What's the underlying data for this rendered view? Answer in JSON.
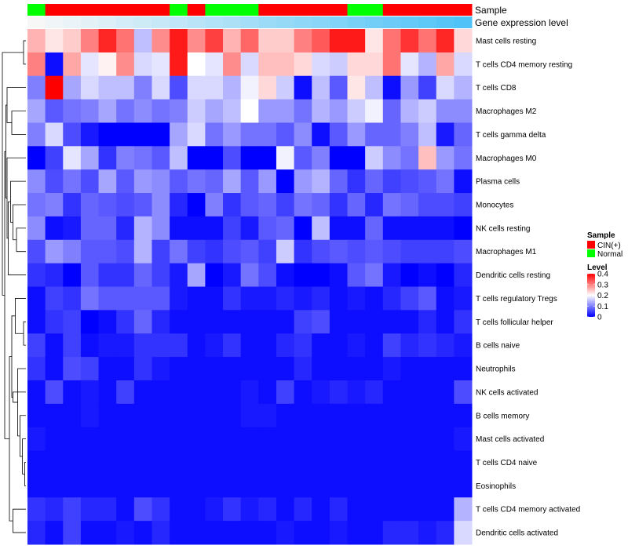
{
  "chart_data": {
    "type": "heatmap",
    "annotation_tracks": [
      {
        "name": "Sample",
        "values": [
          "Normal",
          "CIN(+)",
          "CIN(+)",
          "CIN(+)",
          "CIN(+)",
          "CIN(+)",
          "CIN(+)",
          "CIN(+)",
          "Normal",
          "CIN(+)",
          "Normal",
          "Normal",
          "Normal",
          "CIN(+)",
          "CIN(+)",
          "CIN(+)",
          "CIN(+)",
          "CIN(+)",
          "Normal",
          "Normal",
          "CIN(+)",
          "CIN(+)",
          "CIN(+)",
          "CIN(+)",
          "CIN(+)"
        ]
      },
      {
        "name": "Gene expression level",
        "values": [
          0.0,
          0.04,
          0.08,
          0.12,
          0.16,
          0.21,
          0.25,
          0.29,
          0.33,
          0.37,
          0.41,
          0.45,
          0.5,
          0.54,
          0.58,
          0.62,
          0.66,
          0.7,
          0.75,
          0.79,
          0.83,
          0.87,
          0.91,
          0.95,
          1.0
        ]
      }
    ],
    "annotation_colors": {
      "CIN(+)": "#ff0000",
      "Normal": "#00ff00",
      "expression_low": "#f7f7f7",
      "expression_high": "#4fc3f7"
    },
    "rows": [
      "Mast cells resting",
      "T cells CD4 memory resting",
      "T cells CD8",
      "Macrophages M2",
      "T cells gamma delta",
      "Macrophages M0",
      "Plasma cells",
      "Monocytes",
      "NK cells resting",
      "Macrophages M1",
      "Dendritic cells resting",
      "T cells regulatory  Tregs",
      "T cells follicular helper",
      "B cells naive",
      "Neutrophils",
      "NK cells activated",
      "B cells memory",
      "Mast cells activated",
      "T cells CD4 naive",
      "Eosinophils",
      "T cells CD4 memory activated",
      "Dendritic cells activated"
    ],
    "values": [
      [
        0.26,
        0.22,
        0.24,
        0.3,
        0.37,
        0.31,
        0.15,
        0.29,
        0.38,
        0.29,
        0.35,
        0.26,
        0.32,
        0.24,
        0.24,
        0.3,
        0.33,
        0.38,
        0.38,
        0.22,
        0.31,
        0.36,
        0.31,
        0.37,
        0.23
      ],
      [
        0.3,
        0.01,
        0.27,
        0.18,
        0.21,
        0.29,
        0.17,
        0.18,
        0.38,
        0.2,
        0.18,
        0.29,
        0.17,
        0.25,
        0.25,
        0.23,
        0.17,
        0.16,
        0.23,
        0.23,
        0.31,
        0.18,
        0.14,
        0.27,
        0.17
      ],
      [
        0.1,
        0.4,
        0.13,
        0.17,
        0.15,
        0.15,
        0.1,
        0.17,
        0.06,
        0.17,
        0.17,
        0.14,
        0.19,
        0.23,
        0.16,
        0.01,
        0.15,
        0.07,
        0.22,
        0.15,
        0.01,
        0.12,
        0.05,
        0.17,
        0.14
      ],
      [
        0.13,
        0.07,
        0.09,
        0.1,
        0.13,
        0.09,
        0.11,
        0.09,
        0.1,
        0.16,
        0.13,
        0.15,
        0.2,
        0.12,
        0.12,
        0.09,
        0.14,
        0.12,
        0.16,
        0.19,
        0.08,
        0.14,
        0.16,
        0.11,
        0.11
      ],
      [
        0.1,
        0.17,
        0.06,
        0.02,
        0.0,
        0.0,
        0.0,
        0.0,
        0.13,
        0.17,
        0.09,
        0.12,
        0.09,
        0.09,
        0.07,
        0.11,
        0.01,
        0.07,
        0.12,
        0.08,
        0.08,
        0.1,
        0.15,
        0.02,
        0.08
      ],
      [
        0.0,
        0.05,
        0.18,
        0.13,
        0.04,
        0.1,
        0.09,
        0.07,
        0.15,
        0.0,
        0.0,
        0.06,
        0.0,
        0.0,
        0.19,
        0.07,
        0.1,
        0.0,
        0.0,
        0.16,
        0.11,
        0.09,
        0.25,
        0.12,
        0.09
      ],
      [
        0.11,
        0.06,
        0.09,
        0.06,
        0.13,
        0.07,
        0.12,
        0.11,
        0.07,
        0.09,
        0.08,
        0.13,
        0.07,
        0.12,
        0.0,
        0.12,
        0.14,
        0.08,
        0.04,
        0.08,
        0.05,
        0.06,
        0.07,
        0.09,
        0.01
      ],
      [
        0.09,
        0.1,
        0.04,
        0.08,
        0.07,
        0.06,
        0.07,
        0.11,
        0.03,
        0.0,
        0.1,
        0.04,
        0.07,
        0.08,
        0.05,
        0.09,
        0.08,
        0.04,
        0.08,
        0.03,
        0.09,
        0.08,
        0.06,
        0.06,
        0.05
      ],
      [
        0.11,
        0.01,
        0.02,
        0.08,
        0.08,
        0.03,
        0.14,
        0.11,
        0.01,
        0.01,
        0.01,
        0.05,
        0.02,
        0.07,
        0.08,
        0.0,
        0.15,
        0.01,
        0.01,
        0.08,
        0.01,
        0.01,
        0.01,
        0.01,
        0.0
      ],
      [
        0.06,
        0.12,
        0.1,
        0.07,
        0.07,
        0.06,
        0.14,
        0.05,
        0.09,
        0.05,
        0.04,
        0.06,
        0.07,
        0.05,
        0.16,
        0.04,
        0.06,
        0.07,
        0.06,
        0.07,
        0.06,
        0.05,
        0.05,
        0.05,
        0.06
      ],
      [
        0.04,
        0.03,
        0.0,
        0.07,
        0.04,
        0.04,
        0.08,
        0.05,
        0.02,
        0.13,
        0.0,
        0.02,
        0.09,
        0.06,
        0.01,
        0.0,
        0.0,
        0.01,
        0.07,
        0.09,
        0.02,
        0.0,
        0.01,
        0.0,
        0.03
      ],
      [
        0.01,
        0.05,
        0.04,
        0.09,
        0.07,
        0.07,
        0.07,
        0.07,
        0.02,
        0.01,
        0.01,
        0.04,
        0.02,
        0.02,
        0.03,
        0.02,
        0.03,
        0.01,
        0.02,
        0.01,
        0.03,
        0.05,
        0.07,
        0.01,
        0.02
      ],
      [
        0.01,
        0.04,
        0.05,
        0.0,
        0.01,
        0.04,
        0.08,
        0.03,
        0.01,
        0.01,
        0.01,
        0.01,
        0.01,
        0.01,
        0.01,
        0.05,
        0.06,
        0.01,
        0.01,
        0.01,
        0.01,
        0.01,
        0.03,
        0.01,
        0.04
      ],
      [
        0.05,
        0.01,
        0.05,
        0.01,
        0.02,
        0.02,
        0.04,
        0.04,
        0.04,
        0.01,
        0.02,
        0.04,
        0.01,
        0.01,
        0.03,
        0.04,
        0.01,
        0.01,
        0.02,
        0.01,
        0.05,
        0.03,
        0.04,
        0.03,
        0.02
      ],
      [
        0.04,
        0.01,
        0.06,
        0.05,
        0.01,
        0.01,
        0.04,
        0.02,
        0.01,
        0.01,
        0.01,
        0.01,
        0.01,
        0.01,
        0.01,
        0.03,
        0.01,
        0.01,
        0.01,
        0.01,
        0.02,
        0.01,
        0.01,
        0.01,
        0.01
      ],
      [
        0.01,
        0.06,
        0.01,
        0.02,
        0.01,
        0.05,
        0.01,
        0.01,
        0.01,
        0.01,
        0.01,
        0.01,
        0.02,
        0.01,
        0.05,
        0.01,
        0.02,
        0.03,
        0.02,
        0.03,
        0.01,
        0.01,
        0.01,
        0.01,
        0.06
      ],
      [
        0.01,
        0.01,
        0.01,
        0.02,
        0.01,
        0.01,
        0.01,
        0.01,
        0.01,
        0.01,
        0.01,
        0.01,
        0.02,
        0.02,
        0.01,
        0.01,
        0.01,
        0.01,
        0.01,
        0.01,
        0.01,
        0.01,
        0.01,
        0.01,
        0.01
      ],
      [
        0.02,
        0.01,
        0.01,
        0.01,
        0.01,
        0.01,
        0.01,
        0.01,
        0.01,
        0.01,
        0.01,
        0.01,
        0.01,
        0.01,
        0.01,
        0.01,
        0.01,
        0.01,
        0.01,
        0.01,
        0.01,
        0.01,
        0.01,
        0.01,
        0.02
      ],
      [
        0.01,
        0.01,
        0.01,
        0.01,
        0.01,
        0.01,
        0.01,
        0.01,
        0.01,
        0.01,
        0.01,
        0.01,
        0.01,
        0.01,
        0.01,
        0.01,
        0.01,
        0.01,
        0.01,
        0.01,
        0.01,
        0.01,
        0.01,
        0.01,
        0.01
      ],
      [
        0.01,
        0.01,
        0.01,
        0.01,
        0.01,
        0.01,
        0.01,
        0.01,
        0.01,
        0.01,
        0.01,
        0.01,
        0.01,
        0.01,
        0.01,
        0.01,
        0.01,
        0.01,
        0.01,
        0.01,
        0.01,
        0.01,
        0.01,
        0.01,
        0.01
      ],
      [
        0.04,
        0.03,
        0.05,
        0.03,
        0.03,
        0.01,
        0.06,
        0.04,
        0.01,
        0.01,
        0.02,
        0.04,
        0.02,
        0.03,
        0.01,
        0.03,
        0.01,
        0.03,
        0.01,
        0.01,
        0.01,
        0.01,
        0.01,
        0.01,
        0.14
      ],
      [
        0.03,
        0.01,
        0.05,
        0.01,
        0.01,
        0.02,
        0.01,
        0.03,
        0.01,
        0.01,
        0.01,
        0.01,
        0.01,
        0.01,
        0.02,
        0.01,
        0.01,
        0.02,
        0.01,
        0.01,
        0.03,
        0.03,
        0.02,
        0.03,
        0.17
      ]
    ],
    "color_scale": {
      "low": "#0000ff",
      "mid": "#ffffff",
      "high": "#ff0000",
      "min": 0,
      "mid_value": 0.2,
      "max": 0.4
    },
    "legend": {
      "sample_title": "Sample",
      "sample_items": [
        "CIN(+)",
        "Normal"
      ],
      "level_title": "Level",
      "level_ticks": [
        "0.4",
        "0.3",
        "0.2",
        "0.1",
        "0"
      ],
      "level_tick_values": [
        0.4,
        0.3,
        0.2,
        0.1,
        0
      ],
      "placement": "right"
    },
    "dendrogram": {
      "side": "left",
      "leaf_order": [
        0,
        1,
        2,
        3,
        4,
        5,
        6,
        7,
        8,
        9,
        10,
        11,
        12,
        13,
        14,
        15,
        16,
        17,
        18,
        19,
        20,
        21
      ],
      "merges": [
        [
          0,
          1,
          0.1
        ],
        [
          12,
          13,
          0.1
        ],
        [
          18,
          19,
          0.05
        ],
        [
          17,
          24,
          0.15
        ],
        [
          16,
          25,
          0.25
        ],
        [
          14,
          26,
          0.35
        ],
        [
          11,
          23,
          0.45
        ],
        [
          15,
          27,
          0.55
        ],
        [
          28,
          29,
          0.6
        ],
        [
          20,
          21,
          0.55
        ],
        [
          30,
          31,
          0.7
        ],
        [
          8,
          9,
          0.4
        ],
        [
          7,
          33,
          0.55
        ],
        [
          6,
          34,
          0.65
        ],
        [
          10,
          35,
          0.75
        ],
        [
          5,
          36,
          0.8
        ],
        [
          3,
          4,
          0.6
        ],
        [
          2,
          38,
          0.8
        ],
        [
          37,
          39,
          0.85
        ],
        [
          32,
          40,
          0.9
        ],
        [
          22,
          41,
          1.0
        ]
      ]
    }
  }
}
